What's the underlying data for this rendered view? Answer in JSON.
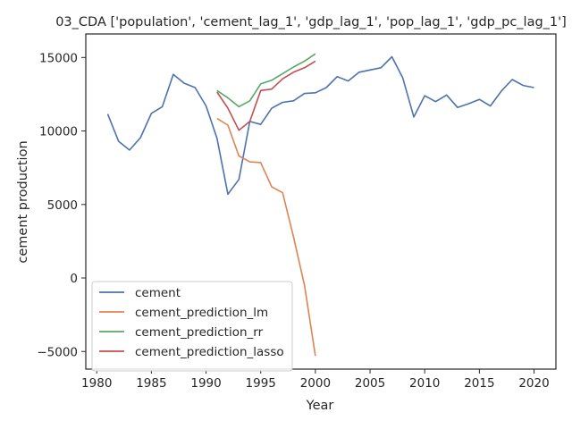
{
  "chart_data": {
    "type": "line",
    "title": "03_CDA ['population', 'cement_lag_1', 'gdp_lag_1', 'pop_lag_1', 'gdp_pc_lag_1']",
    "xlabel": "Year",
    "ylabel": "cement production",
    "xlim": [
      1979.0,
      2022.0
    ],
    "ylim": [
      -6200,
      16600
    ],
    "xticks": [
      1980,
      1985,
      1990,
      1995,
      2000,
      2005,
      2010,
      2015,
      2020
    ],
    "yticks": [
      -5000,
      0,
      5000,
      10000,
      15000
    ],
    "grid": false,
    "legend_position": "lower-left",
    "series": [
      {
        "name": "cement",
        "color": "#4c72b0",
        "x": [
          1981,
          1982,
          1983,
          1984,
          1985,
          1986,
          1987,
          1988,
          1989,
          1990,
          1991,
          1992,
          1993,
          1994,
          1995,
          1996,
          1997,
          1998,
          1999,
          2000,
          2001,
          2002,
          2003,
          2004,
          2005,
          2006,
          2007,
          2008,
          2009,
          2010,
          2011,
          2012,
          2013,
          2014,
          2015,
          2016,
          2017,
          2018,
          2019,
          2020
        ],
        "values": [
          11150,
          9300,
          8700,
          9550,
          11200,
          11650,
          13850,
          13250,
          12950,
          11700,
          9500,
          5700,
          6700,
          10650,
          10450,
          11550,
          11950,
          12050,
          12550,
          12600,
          12950,
          13700,
          13400,
          14000,
          14150,
          14300,
          15050,
          13600,
          10950,
          12400,
          12000,
          12450,
          11600,
          11850,
          12150,
          11700,
          12700,
          13500,
          13100,
          12950
        ]
      },
      {
        "name": "cement_prediction_lm",
        "color": "#dd8452",
        "x": [
          1991,
          1992,
          1993,
          1994,
          1995,
          1996,
          1997,
          1998,
          1999,
          2000
        ],
        "values": [
          10850,
          10400,
          8300,
          7900,
          7850,
          6200,
          5800,
          2800,
          -500,
          -5300
        ]
      },
      {
        "name": "cement_prediction_rr",
        "color": "#55a868",
        "x": [
          1991,
          1992,
          1993,
          1994,
          1995,
          1996,
          1997,
          1998,
          1999,
          2000
        ],
        "values": [
          12750,
          12250,
          11650,
          12050,
          13200,
          13450,
          13900,
          14350,
          14750,
          15250
        ]
      },
      {
        "name": "cement_prediction_lasso",
        "color": "#c44e52",
        "x": [
          1991,
          1992,
          1993,
          1994,
          1995,
          1996,
          1997,
          1998,
          1999,
          2000
        ],
        "values": [
          12650,
          11550,
          10050,
          10650,
          12750,
          12850,
          13550,
          14000,
          14300,
          14750
        ]
      }
    ]
  }
}
